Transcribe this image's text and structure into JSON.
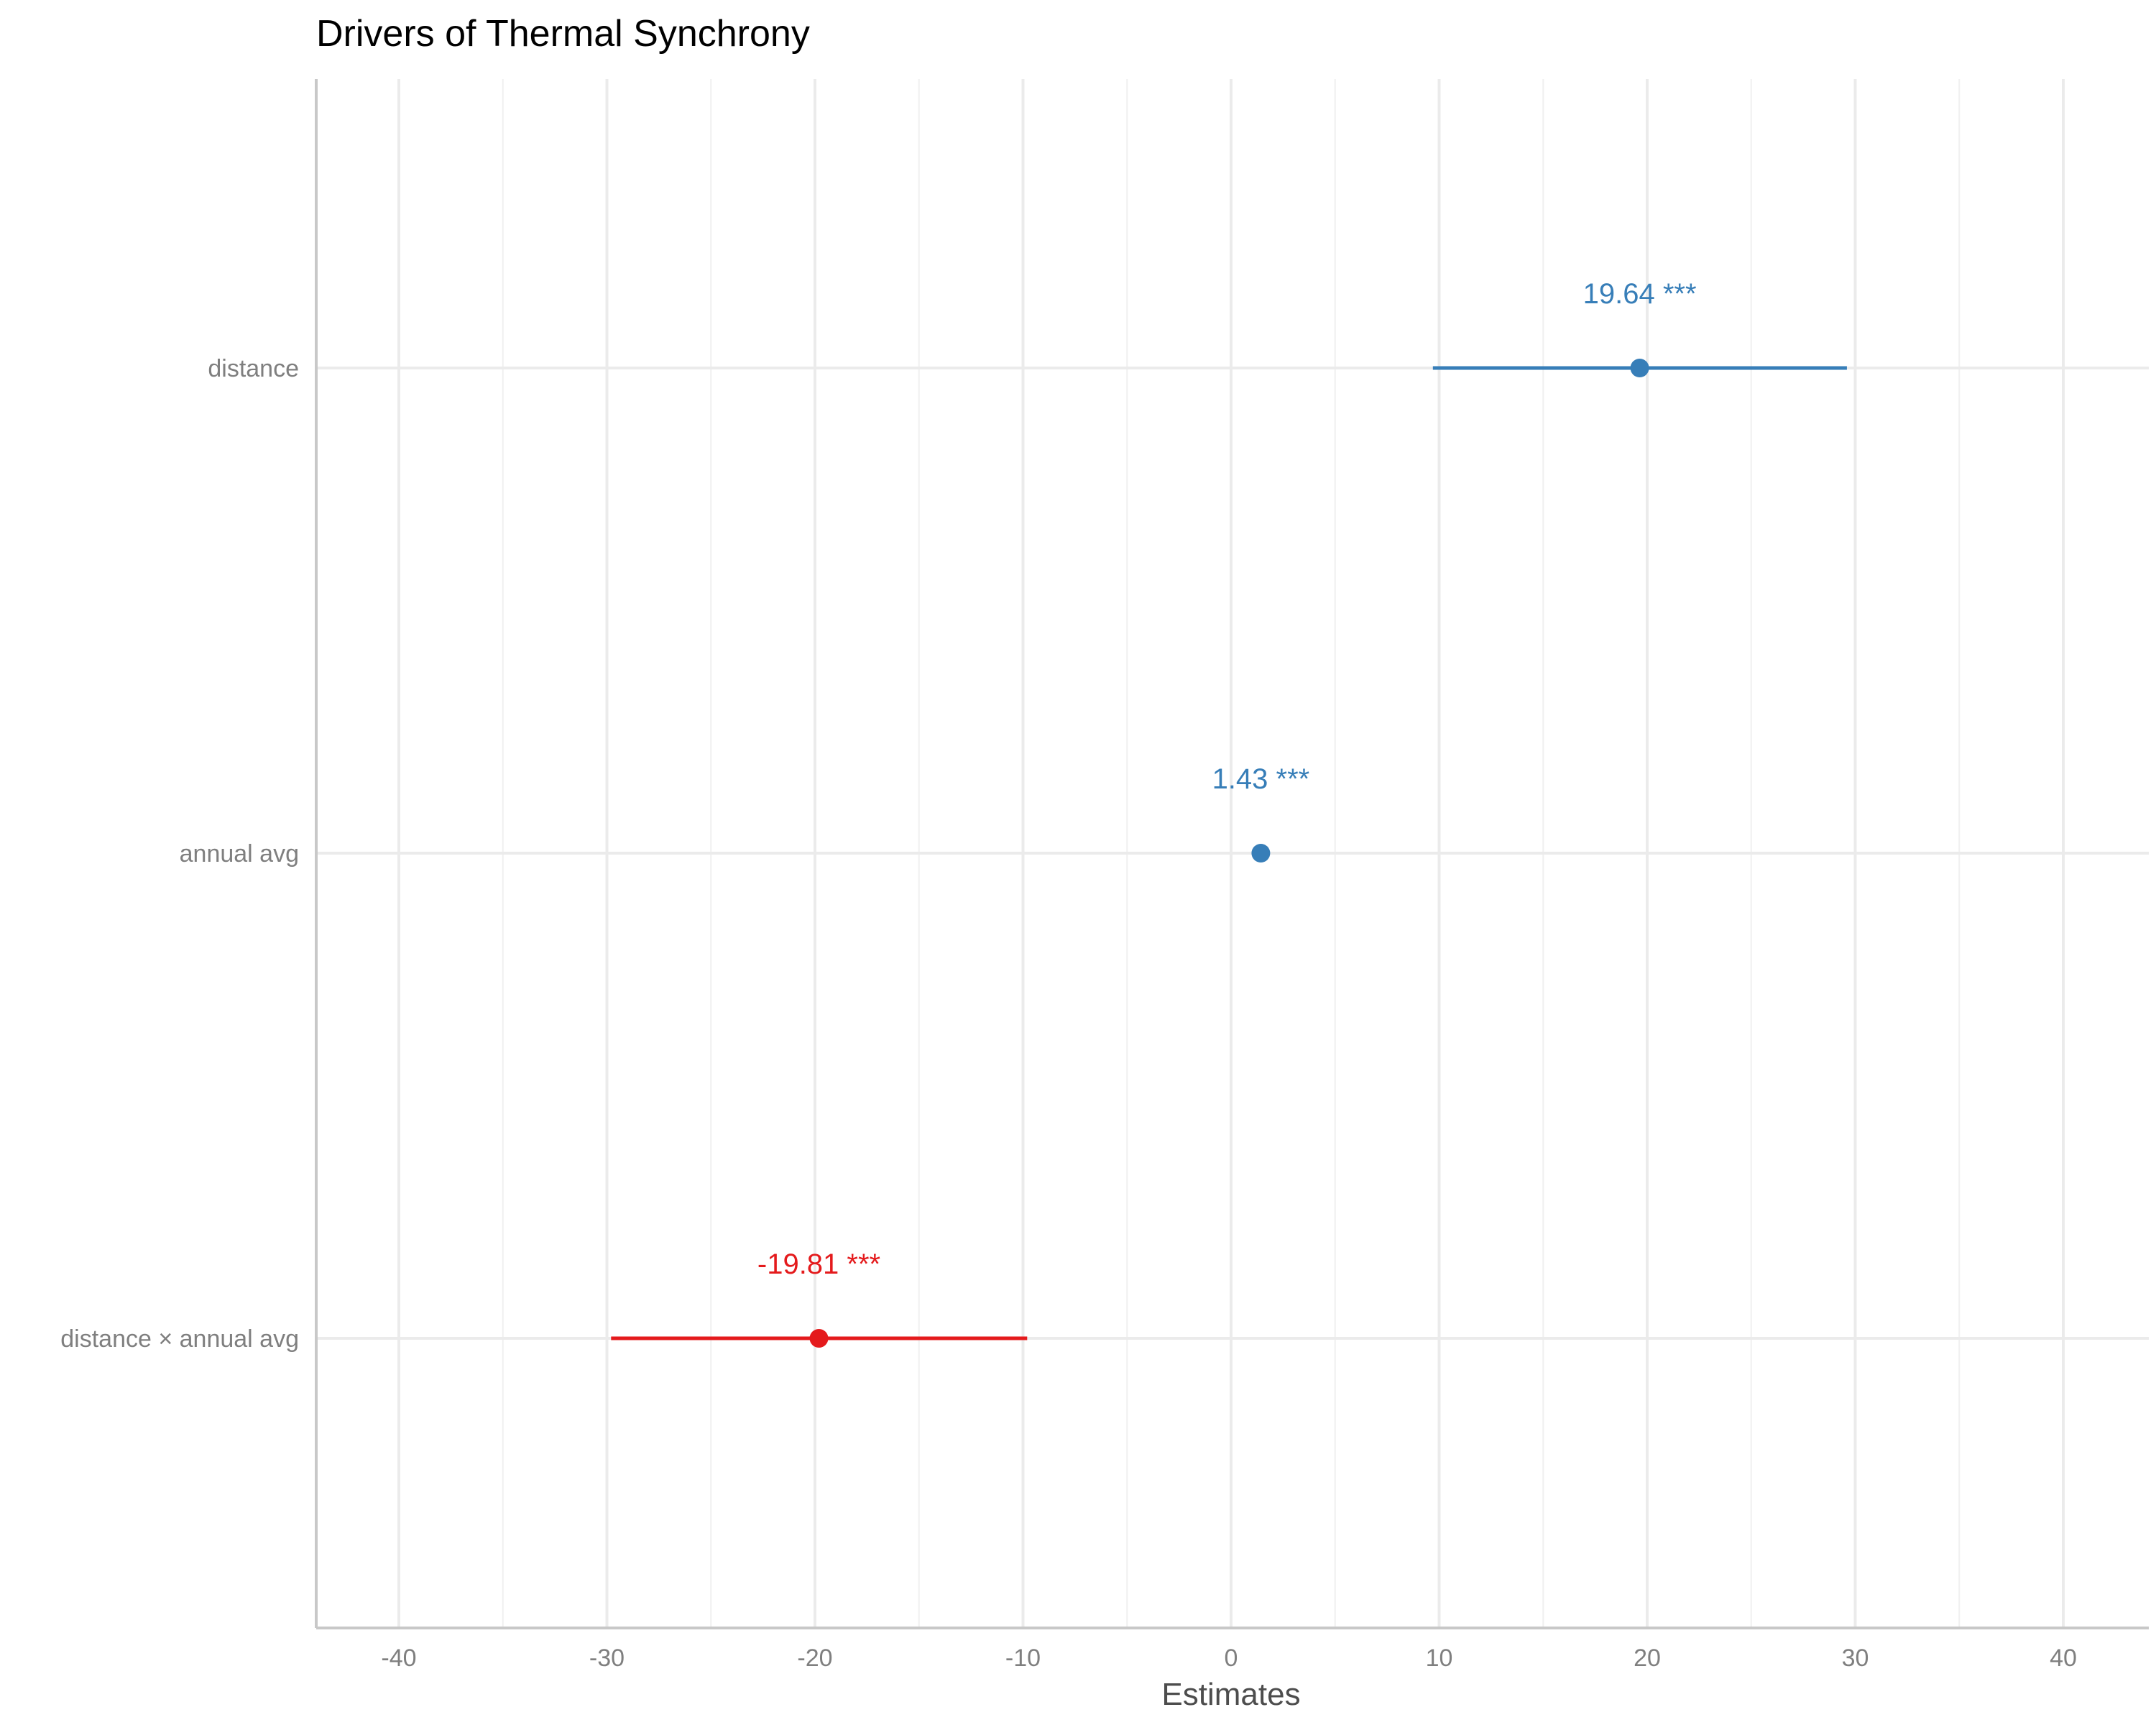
{
  "chart_data": {
    "type": "scatter",
    "title": "Drivers of Thermal Synchrony",
    "xlabel": "Estimates",
    "ylabel": "",
    "xlim": [
      -44,
      44
    ],
    "x_ticks": [
      "-40",
      "-30",
      "-20",
      "-10",
      "0",
      "10",
      "20",
      "30",
      "40"
    ],
    "x_tick_values": [
      -40,
      -30,
      -20,
      -10,
      0,
      10,
      20,
      30,
      40
    ],
    "grid": true,
    "terms": [
      {
        "label": "distance",
        "estimate": 19.64,
        "ci_low": 9.7,
        "ci_high": 29.6,
        "value_label": "19.64 ***",
        "color": "#377eb8"
      },
      {
        "label": "annual avg",
        "estimate": 1.43,
        "ci_low": 1.2,
        "ci_high": 1.7,
        "value_label": "1.43 ***",
        "color": "#377eb8"
      },
      {
        "label": "distance × annual avg",
        "estimate": -19.81,
        "ci_low": -29.8,
        "ci_high": -9.8,
        "value_label": "-19.81 ***",
        "color": "#e41a1c"
      }
    ]
  }
}
